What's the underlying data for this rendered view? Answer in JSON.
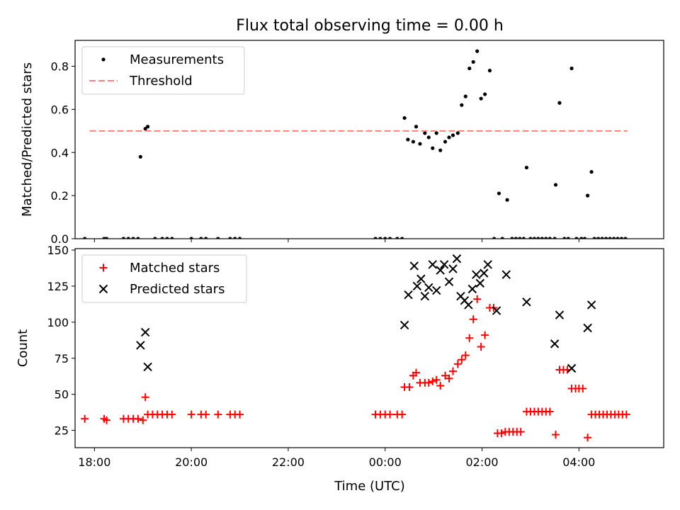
{
  "figure": {
    "title": "Flux total observing time = 0.00 h",
    "xlabel": "Time (UTC)"
  },
  "chart_data": [
    {
      "type": "scatter",
      "title": "Flux total observing time = 0.00 h",
      "ylabel": "Matched/Predicted stars",
      "xlabel": "",
      "x_unit": "hours since 00:00 UTC (negative = previous evening)",
      "xlim": [
        -6.4,
        5.75
      ],
      "ylim": [
        0,
        0.92
      ],
      "yticks": [
        0.0,
        0.2,
        0.4,
        0.6,
        0.8
      ],
      "ytick_labels": [
        "0.0",
        "0.2",
        "0.4",
        "0.6",
        "0.8"
      ],
      "grid": false,
      "legend_position": "upper left",
      "series": [
        {
          "name": "Measurements",
          "marker": "dot",
          "color": "#000000",
          "points": [
            [
              -6.2,
              0.0
            ],
            [
              -5.8,
              0.0
            ],
            [
              -5.75,
              0.0
            ],
            [
              -5.4,
              0.0
            ],
            [
              -5.3,
              0.0
            ],
            [
              -5.2,
              0.0
            ],
            [
              -5.1,
              0.0
            ],
            [
              -5.05,
              0.38
            ],
            [
              -4.95,
              0.51
            ],
            [
              -4.9,
              0.52
            ],
            [
              -4.75,
              0.0
            ],
            [
              -4.6,
              0.0
            ],
            [
              -4.5,
              0.0
            ],
            [
              -4.4,
              0.0
            ],
            [
              -4.0,
              0.0
            ],
            [
              -3.8,
              0.0
            ],
            [
              -3.7,
              0.0
            ],
            [
              -3.45,
              0.0
            ],
            [
              -3.2,
              0.0
            ],
            [
              -3.1,
              0.0
            ],
            [
              -3.0,
              0.0
            ],
            [
              -0.2,
              0.0
            ],
            [
              -0.1,
              0.0
            ],
            [
              0.0,
              0.0
            ],
            [
              0.1,
              0.0
            ],
            [
              0.25,
              0.0
            ],
            [
              0.35,
              0.0
            ],
            [
              0.4,
              0.56
            ],
            [
              0.47,
              0.46
            ],
            [
              0.58,
              0.45
            ],
            [
              0.64,
              0.52
            ],
            [
              0.72,
              0.44
            ],
            [
              0.82,
              0.49
            ],
            [
              0.9,
              0.47
            ],
            [
              0.98,
              0.42
            ],
            [
              1.06,
              0.49
            ],
            [
              1.14,
              0.41
            ],
            [
              1.24,
              0.45
            ],
            [
              1.32,
              0.47
            ],
            [
              1.4,
              0.48
            ],
            [
              1.5,
              0.49
            ],
            [
              1.58,
              0.62
            ],
            [
              1.66,
              0.66
            ],
            [
              1.74,
              0.79
            ],
            [
              1.82,
              0.82
            ],
            [
              1.9,
              0.87
            ],
            [
              1.98,
              0.65
            ],
            [
              2.06,
              0.67
            ],
            [
              2.16,
              0.78
            ],
            [
              2.25,
              0.0
            ],
            [
              2.35,
              0.21
            ],
            [
              2.42,
              0.0
            ],
            [
              2.52,
              0.18
            ],
            [
              2.62,
              0.0
            ],
            [
              2.7,
              0.0
            ],
            [
              2.78,
              0.0
            ],
            [
              2.86,
              0.0
            ],
            [
              2.92,
              0.33
            ],
            [
              3.0,
              0.0
            ],
            [
              3.08,
              0.0
            ],
            [
              3.16,
              0.0
            ],
            [
              3.24,
              0.0
            ],
            [
              3.32,
              0.0
            ],
            [
              3.4,
              0.0
            ],
            [
              3.5,
              0.0
            ],
            [
              3.52,
              0.25
            ],
            [
              3.6,
              0.63
            ],
            [
              3.7,
              0.0
            ],
            [
              3.78,
              0.0
            ],
            [
              3.85,
              0.79
            ],
            [
              3.95,
              0.0
            ],
            [
              4.05,
              0.0
            ],
            [
              4.12,
              0.0
            ],
            [
              4.18,
              0.2
            ],
            [
              4.26,
              0.31
            ],
            [
              4.32,
              0.0
            ],
            [
              4.4,
              0.0
            ],
            [
              4.48,
              0.0
            ],
            [
              4.56,
              0.0
            ],
            [
              4.64,
              0.0
            ],
            [
              4.72,
              0.0
            ],
            [
              4.8,
              0.0
            ],
            [
              4.88,
              0.0
            ],
            [
              4.96,
              0.0
            ]
          ]
        },
        {
          "name": "Threshold",
          "style": "dashed-line",
          "color": "#ff7f7f",
          "points": [
            [
              -6.1,
              0.5
            ],
            [
              5.0,
              0.5
            ]
          ]
        }
      ]
    },
    {
      "type": "scatter",
      "title": "",
      "ylabel": "Count",
      "xlabel": "Time (UTC)",
      "x_unit": "hours since 00:00 UTC (negative = previous evening)",
      "xlim": [
        -6.4,
        5.75
      ],
      "ylim": [
        13,
        151
      ],
      "yticks": [
        25,
        50,
        75,
        100,
        125,
        150
      ],
      "ytick_labels": [
        "25",
        "50",
        "75",
        "100",
        "125",
        "150"
      ],
      "xticks": [
        -6,
        -4,
        -2,
        0,
        2,
        4
      ],
      "xtick_labels": [
        "18:00",
        "20:00",
        "22:00",
        "00:00",
        "02:00",
        "04:00"
      ],
      "grid": false,
      "legend_position": "upper left",
      "series": [
        {
          "name": "Matched stars",
          "marker": "plus",
          "color": "#ff0000",
          "points": [
            [
              -6.2,
              33
            ],
            [
              -5.8,
              33
            ],
            [
              -5.75,
              32
            ],
            [
              -5.4,
              33
            ],
            [
              -5.3,
              33
            ],
            [
              -5.2,
              33
            ],
            [
              -5.1,
              33
            ],
            [
              -5.0,
              32
            ],
            [
              -4.95,
              48
            ],
            [
              -4.9,
              36
            ],
            [
              -4.8,
              36
            ],
            [
              -4.7,
              36
            ],
            [
              -4.6,
              36
            ],
            [
              -4.5,
              36
            ],
            [
              -4.4,
              36
            ],
            [
              -4.0,
              36
            ],
            [
              -3.8,
              36
            ],
            [
              -3.7,
              36
            ],
            [
              -3.45,
              36
            ],
            [
              -3.2,
              36
            ],
            [
              -3.1,
              36
            ],
            [
              -3.0,
              36
            ],
            [
              -0.2,
              36
            ],
            [
              -0.1,
              36
            ],
            [
              0.0,
              36
            ],
            [
              0.1,
              36
            ],
            [
              0.25,
              36
            ],
            [
              0.35,
              36
            ],
            [
              0.4,
              55
            ],
            [
              0.5,
              55
            ],
            [
              0.58,
              63
            ],
            [
              0.64,
              65
            ],
            [
              0.72,
              58
            ],
            [
              0.82,
              58
            ],
            [
              0.9,
              58
            ],
            [
              0.98,
              59
            ],
            [
              1.06,
              60
            ],
            [
              1.14,
              56
            ],
            [
              1.24,
              63
            ],
            [
              1.32,
              61
            ],
            [
              1.4,
              66
            ],
            [
              1.5,
              71
            ],
            [
              1.58,
              74
            ],
            [
              1.66,
              77
            ],
            [
              1.74,
              89
            ],
            [
              1.82,
              102
            ],
            [
              1.9,
              116
            ],
            [
              1.98,
              83
            ],
            [
              2.06,
              91
            ],
            [
              2.16,
              110
            ],
            [
              2.24,
              110
            ],
            [
              2.32,
              23
            ],
            [
              2.4,
              23
            ],
            [
              2.48,
              24
            ],
            [
              2.56,
              24
            ],
            [
              2.64,
              24
            ],
            [
              2.72,
              24
            ],
            [
              2.8,
              24
            ],
            [
              2.92,
              38
            ],
            [
              3.0,
              38
            ],
            [
              3.08,
              38
            ],
            [
              3.16,
              38
            ],
            [
              3.24,
              38
            ],
            [
              3.32,
              38
            ],
            [
              3.4,
              38
            ],
            [
              3.52,
              22
            ],
            [
              3.6,
              67
            ],
            [
              3.68,
              67
            ],
            [
              3.76,
              67
            ],
            [
              3.85,
              54
            ],
            [
              3.93,
              54
            ],
            [
              4.0,
              54
            ],
            [
              4.08,
              54
            ],
            [
              4.18,
              20
            ],
            [
              4.26,
              36
            ],
            [
              4.34,
              36
            ],
            [
              4.42,
              36
            ],
            [
              4.5,
              36
            ],
            [
              4.58,
              36
            ],
            [
              4.66,
              36
            ],
            [
              4.74,
              36
            ],
            [
              4.82,
              36
            ],
            [
              4.9,
              36
            ],
            [
              4.98,
              36
            ]
          ]
        },
        {
          "name": "Predicted stars",
          "marker": "x",
          "color": "#000000",
          "points": [
            [
              -5.05,
              84
            ],
            [
              -4.95,
              93
            ],
            [
              -4.9,
              69
            ],
            [
              0.4,
              98
            ],
            [
              0.48,
              119
            ],
            [
              0.6,
              139
            ],
            [
              0.66,
              125
            ],
            [
              0.74,
              130
            ],
            [
              0.82,
              118
            ],
            [
              0.9,
              124
            ],
            [
              0.98,
              140
            ],
            [
              1.06,
              122
            ],
            [
              1.14,
              136
            ],
            [
              1.22,
              140
            ],
            [
              1.32,
              128
            ],
            [
              1.4,
              137
            ],
            [
              1.48,
              144
            ],
            [
              1.56,
              118
            ],
            [
              1.64,
              115
            ],
            [
              1.72,
              112
            ],
            [
              1.8,
              123
            ],
            [
              1.88,
              133
            ],
            [
              1.96,
              127
            ],
            [
              2.04,
              134
            ],
            [
              2.12,
              140
            ],
            [
              2.3,
              108
            ],
            [
              2.5,
              133
            ],
            [
              2.92,
              114
            ],
            [
              3.5,
              85
            ],
            [
              3.6,
              105
            ],
            [
              3.85,
              68
            ],
            [
              4.18,
              96
            ],
            [
              4.26,
              112
            ]
          ]
        }
      ]
    }
  ]
}
